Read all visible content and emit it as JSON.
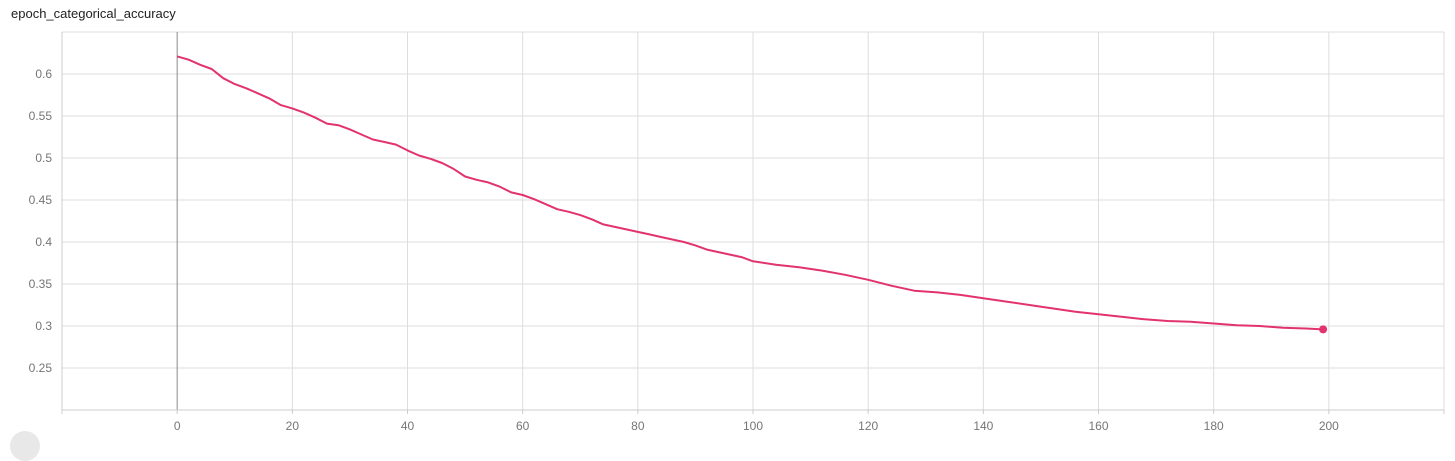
{
  "chart_data": {
    "type": "line",
    "title": "epoch_categorical_accuracy",
    "xlabel": "",
    "ylabel": "",
    "xlim": [
      -20,
      220
    ],
    "ylim": [
      0.2,
      0.65
    ],
    "x_ticks": [
      0,
      20,
      40,
      60,
      80,
      100,
      120,
      140,
      160,
      180,
      200
    ],
    "y_ticks": [
      0.25,
      0.3,
      0.35,
      0.4,
      0.45,
      0.5,
      0.55,
      0.6
    ],
    "grid": true,
    "series": [
      {
        "color": "#e2336f",
        "x": [
          0,
          2,
          4,
          6,
          8,
          10,
          12,
          14,
          16,
          18,
          20,
          22,
          24,
          26,
          28,
          30,
          32,
          34,
          36,
          38,
          40,
          42,
          44,
          46,
          48,
          50,
          52,
          54,
          56,
          58,
          60,
          62,
          64,
          66,
          68,
          70,
          72,
          74,
          76,
          78,
          80,
          82,
          84,
          86,
          88,
          90,
          92,
          94,
          96,
          98,
          100,
          104,
          108,
          112,
          116,
          120,
          124,
          128,
          132,
          136,
          140,
          144,
          148,
          152,
          156,
          160,
          164,
          168,
          172,
          176,
          180,
          184,
          188,
          192,
          196,
          199
        ],
        "values": [
          0.621,
          0.617,
          0.611,
          0.606,
          0.595,
          0.588,
          0.583,
          0.577,
          0.571,
          0.563,
          0.559,
          0.554,
          0.548,
          0.541,
          0.539,
          0.534,
          0.528,
          0.522,
          0.519,
          0.516,
          0.509,
          0.503,
          0.499,
          0.494,
          0.487,
          0.478,
          0.474,
          0.471,
          0.466,
          0.459,
          0.456,
          0.451,
          0.445,
          0.439,
          0.436,
          0.432,
          0.427,
          0.421,
          0.418,
          0.415,
          0.412,
          0.409,
          0.406,
          0.403,
          0.4,
          0.396,
          0.391,
          0.388,
          0.385,
          0.382,
          0.377,
          0.373,
          0.37,
          0.366,
          0.361,
          0.355,
          0.348,
          0.342,
          0.34,
          0.337,
          0.333,
          0.329,
          0.325,
          0.321,
          0.317,
          0.314,
          0.311,
          0.308,
          0.306,
          0.305,
          0.303,
          0.301,
          0.3,
          0.298,
          0.297,
          0.296
        ]
      }
    ]
  }
}
